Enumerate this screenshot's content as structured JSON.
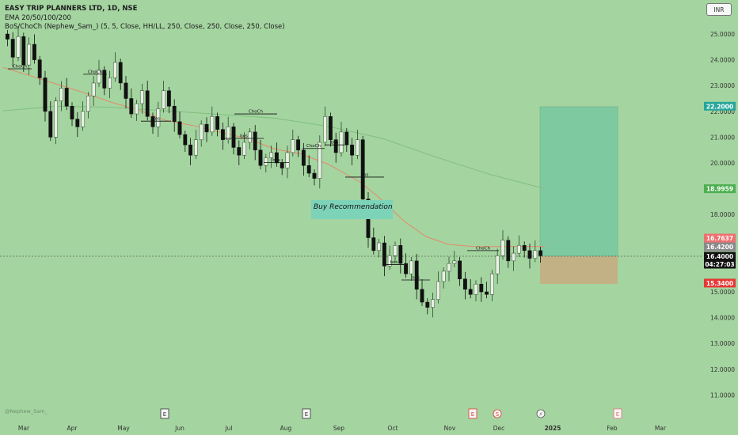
{
  "header": {
    "title": "EASY TRIP PLANNERS LTD, 1D, NSE",
    "ema_indicator": "EMA 20/50/100/200",
    "bos_indicator": "BoS/ChoCh (Nephew_Sam_) (5, 5, Close, HH/LL, 250, Close, 250, Close, 250, Close)"
  },
  "currency_button": "INR",
  "watermark": "@Nephew_Sam_",
  "colors": {
    "background": "#a4d4a0",
    "up_candle": "#2f4a2f",
    "down_candle": "#111111",
    "ema_short": "#e48a6a",
    "ema_long": "#7fbf7f",
    "target_zone": "#7ec9a0",
    "stop_zone": "#c2b184",
    "target_tag": "#26a69a",
    "stop_tag": "#e53935"
  },
  "chart_data": {
    "type": "candlestick",
    "symbol": "EASY TRIP PLANNERS LTD",
    "interval": "1D",
    "exchange": "NSE",
    "y_range": [
      10.5,
      25.6
    ],
    "y_ticks": [
      "25.0000",
      "24.0000",
      "23.0000",
      "22.0000",
      "21.0000",
      "20.0000",
      "19.0000",
      "18.0000",
      "17.0000",
      "16.0000",
      "15.0000",
      "14.0000",
      "13.0000",
      "12.0000",
      "11.0000"
    ],
    "x_ticks": [
      "Mar",
      "Apr",
      "May",
      "Jun",
      "Jul",
      "Aug",
      "Sep",
      "Oct",
      "Nov",
      "Dec",
      "2025",
      "Feb",
      "Mar"
    ],
    "event_markers": [
      "E",
      "E",
      "E",
      "S",
      "⚡",
      "E"
    ],
    "price_tags": {
      "target": "22.2000",
      "ema_long": "18.9959",
      "ema_short": "16.7637",
      "last_close": "16.4200",
      "current": "16.4000",
      "countdown": "04:27:03",
      "stop": "15.3400"
    },
    "position": {
      "entry": 16.4,
      "target": 22.2,
      "stop": 15.34
    },
    "annotations": [
      "ChoCh",
      "bos",
      "Buy Recommendation"
    ],
    "structure_marks": [
      {
        "label": "ChoCh",
        "value": 23.65
      },
      {
        "label": "ChoCh",
        "value": 23.44
      },
      {
        "label": "bos",
        "value": 21.62
      },
      {
        "label": "ChoCh",
        "value": 21.9
      },
      {
        "label": "bos",
        "value": 20.95
      },
      {
        "label": "bos",
        "value": 20.02
      },
      {
        "label": "ChoCh",
        "value": 20.56
      },
      {
        "label": "bos",
        "value": 20.7
      },
      {
        "label": "bos",
        "value": 19.45
      },
      {
        "label": "ChoCh",
        "value": 16.6
      },
      {
        "label": "bos",
        "value": 16.06
      },
      {
        "label": "bos",
        "value": 15.46
      }
    ],
    "ema_short_line": [
      [
        0,
        23.7
      ],
      [
        0.05,
        23.38
      ],
      [
        0.1,
        23.05
      ],
      [
        0.15,
        22.72
      ],
      [
        0.2,
        22.35
      ],
      [
        0.25,
        22.05
      ],
      [
        0.3,
        21.65
      ],
      [
        0.35,
        21.45
      ],
      [
        0.4,
        21.2
      ],
      [
        0.45,
        20.95
      ],
      [
        0.5,
        20.55
      ],
      [
        0.55,
        20.35
      ],
      [
        0.6,
        19.95
      ],
      [
        0.66,
        19.25
      ],
      [
        0.7,
        18.55
      ],
      [
        0.74,
        17.75
      ],
      [
        0.78,
        17.15
      ],
      [
        0.82,
        16.85
      ],
      [
        0.87,
        16.75
      ],
      [
        1,
        16.76
      ]
    ],
    "ema_long_line": [
      [
        0,
        22.02
      ],
      [
        0.1,
        22.2
      ],
      [
        0.2,
        22.16
      ],
      [
        0.3,
        22.02
      ],
      [
        0.4,
        21.88
      ],
      [
        0.5,
        21.74
      ],
      [
        0.6,
        21.42
      ],
      [
        0.7,
        20.95
      ],
      [
        0.8,
        20.22
      ],
      [
        0.9,
        19.55
      ],
      [
        1,
        19.0
      ]
    ],
    "closes": [
      24.8,
      24.1,
      24.9,
      23.8,
      24.6,
      24.0,
      23.3,
      22.0,
      21.0,
      22.4,
      22.9,
      22.2,
      21.7,
      21.4,
      22.0,
      22.6,
      23.1,
      23.6,
      22.9,
      23.3,
      23.9,
      23.1,
      22.5,
      21.9,
      22.3,
      22.8,
      21.8,
      21.4,
      22.1,
      22.8,
      22.2,
      21.6,
      21.1,
      20.7,
      20.3,
      20.9,
      21.5,
      21.2,
      21.8,
      21.3,
      20.9,
      21.4,
      20.6,
      20.3,
      20.8,
      21.2,
      20.5,
      19.9,
      20.2,
      20.4,
      20.0,
      19.8,
      20.4,
      20.9,
      20.5,
      19.9,
      19.6,
      19.4,
      20.8,
      21.8,
      20.9,
      20.4,
      21.2,
      20.7,
      20.3,
      20.9,
      18.6,
      17.1,
      16.6,
      16.9,
      16.0,
      16.4,
      16.8,
      16.1,
      15.7,
      16.2,
      15.1,
      14.6,
      14.4,
      14.7,
      15.4,
      15.8,
      16.1,
      16.2,
      15.5,
      15.1,
      14.9,
      15.3,
      15.0,
      14.9,
      15.7,
      16.4,
      17.0,
      16.2,
      16.5,
      16.8,
      16.6,
      16.3,
      16.6,
      16.4
    ]
  }
}
